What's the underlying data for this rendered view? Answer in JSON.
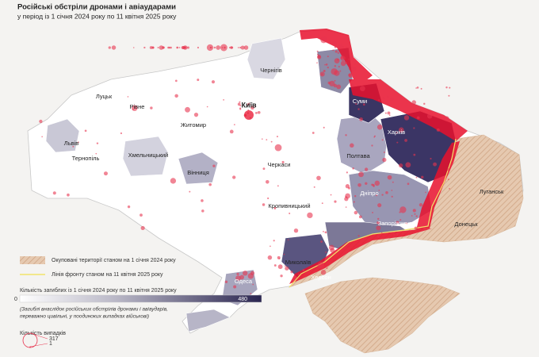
{
  "header": {
    "title": "Російські обстріли дронами і авіаударами",
    "subtitle": "у період із 1 січня 2024 року по 11 квітня 2025 року"
  },
  "cities": [
    "Чернігів",
    "Луцьк",
    "Рівне",
    "Київ",
    "Житомир",
    "Суми",
    "Львів",
    "Харків",
    "Хмельницький",
    "Тернопіль",
    "Полтава",
    "Вінниця",
    "Черкаси",
    "Луганськ",
    "Дніпро",
    "Кропивницький",
    "Запоріжжя",
    "Донецьк",
    "Миколаїв",
    "Одеса",
    "Херсон"
  ],
  "legend": {
    "occupied": "Окуповані території станом на 1 січня 2024 року",
    "front_line": "Лінія фронту станом на 11 квітня 2025 року",
    "deaths": {
      "title": "Кількість загиблих із 1 січня 2024 року по 11 квітня 2025 року",
      "min": 0,
      "max": 480,
      "note": [
        "(Загиблі внаслідок російських обстрілів дронами і авіаударів,",
        "переважно цивільні, у поодиноких випадках військові)"
      ]
    },
    "cases": {
      "title": "Кількість випадків",
      "max": 317,
      "min": 1
    }
  }
}
